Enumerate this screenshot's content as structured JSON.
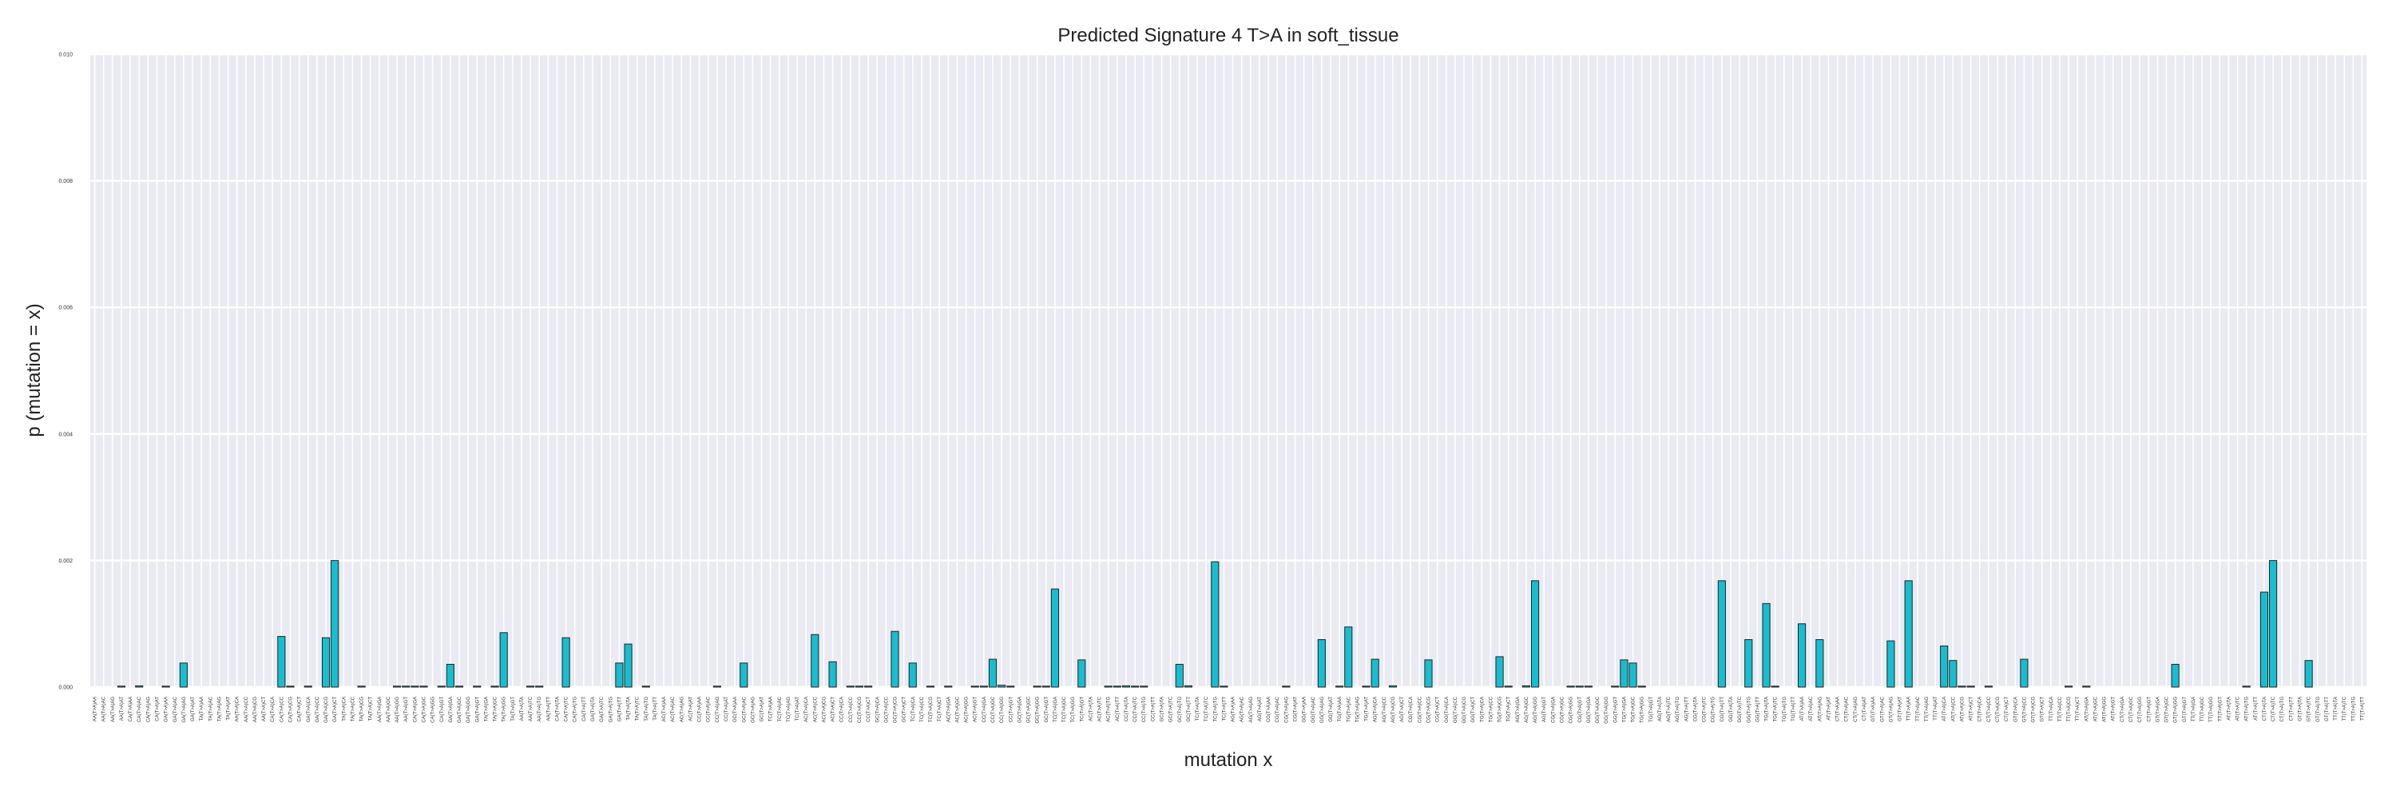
{
  "chart_data": {
    "type": "bar",
    "title": "Predicted Signature 4 T>A in soft_tissue",
    "xlabel": "mutation x",
    "ylabel": "p (mutation = x)",
    "ylim": [
      0,
      0.01
    ],
    "yticks": [
      "0.000",
      "0.002",
      "0.004",
      "0.006",
      "0.008",
      "0.010"
    ],
    "grid": true,
    "bar_color": "#17becf",
    "edge_color": "#222222",
    "background_color": "#eaeaf2",
    "categories": [
      "AA(T>A)AA",
      "AA(T>A)AC",
      "AA(T>A)AG",
      "AA(T>A)AT",
      "CA(T>A)AA",
      "CA(T>A)AC",
      "CA(T>A)AG",
      "CA(T>A)AT",
      "GA(T>A)AA",
      "GA(T>A)AC",
      "GA(T>A)AG",
      "GA(T>A)AT",
      "TA(T>A)AA",
      "TA(T>A)AC",
      "TA(T>A)AG",
      "TA(T>A)AT",
      "AA(T>A)CA",
      "AA(T>A)CC",
      "AA(T>A)CG",
      "AA(T>A)CT",
      "CA(T>A)CA",
      "CA(T>A)CC",
      "CA(T>A)CG",
      "CA(T>A)CT",
      "GA(T>A)CA",
      "GA(T>A)CC",
      "GA(T>A)CG",
      "GA(T>A)CT",
      "TA(T>A)CA",
      "TA(T>A)CC",
      "TA(T>A)CG",
      "TA(T>A)CT",
      "AA(T>A)GA",
      "AA(T>A)GC",
      "AA(T>A)GG",
      "AA(T>A)GT",
      "CA(T>A)GA",
      "CA(T>A)GC",
      "CA(T>A)GG",
      "CA(T>A)GT",
      "GA(T>A)GA",
      "GA(T>A)GC",
      "GA(T>A)GG",
      "GA(T>A)GT",
      "TA(T>A)GA",
      "TA(T>A)GC",
      "TA(T>A)GG",
      "TA(T>A)GT",
      "AA(T>A)TA",
      "AA(T>A)TC",
      "AA(T>A)TG",
      "AA(T>A)TT",
      "CA(T>A)TA",
      "CA(T>A)TC",
      "CA(T>A)TG",
      "CA(T>A)TT",
      "GA(T>A)TA",
      "GA(T>A)TC",
      "GA(T>A)TG",
      "GA(T>A)TT",
      "TA(T>A)TA",
      "TA(T>A)TC",
      "TA(T>A)TG",
      "TA(T>A)TT",
      "AC(T>A)AA",
      "AC(T>A)AC",
      "AC(T>A)AG",
      "AC(T>A)AT",
      "CC(T>A)AA",
      "CC(T>A)AC",
      "CC(T>A)AG",
      "CC(T>A)AT",
      "GC(T>A)AA",
      "GC(T>A)AC",
      "GC(T>A)AG",
      "GC(T>A)AT",
      "TC(T>A)AA",
      "TC(T>A)AC",
      "TC(T>A)AG",
      "TC(T>A)AT",
      "AC(T>A)CA",
      "AC(T>A)CC",
      "AC(T>A)CG",
      "AC(T>A)CT",
      "CC(T>A)CA",
      "CC(T>A)CC",
      "CC(T>A)CG",
      "CC(T>A)CT",
      "GC(T>A)CA",
      "GC(T>A)CC",
      "GC(T>A)CG",
      "GC(T>A)CT",
      "TC(T>A)CA",
      "TC(T>A)CC",
      "TC(T>A)CG",
      "TC(T>A)CT",
      "AC(T>A)GA",
      "AC(T>A)GC",
      "AC(T>A)GG",
      "AC(T>A)GT",
      "CC(T>A)GA",
      "CC(T>A)GC",
      "CC(T>A)GG",
      "CC(T>A)GT",
      "GC(T>A)GA",
      "GC(T>A)GC",
      "GC(T>A)GG",
      "GC(T>A)GT",
      "TC(T>A)GA",
      "TC(T>A)GC",
      "TC(T>A)GG",
      "TC(T>A)GT",
      "AC(T>A)TA",
      "AC(T>A)TC",
      "AC(T>A)TG",
      "AC(T>A)TT",
      "CC(T>A)TA",
      "CC(T>A)TC",
      "CC(T>A)TG",
      "CC(T>A)TT",
      "GC(T>A)TA",
      "GC(T>A)TC",
      "GC(T>A)TG",
      "GC(T>A)TT",
      "TC(T>A)TA",
      "TC(T>A)TC",
      "TC(T>A)TG",
      "TC(T>A)TT",
      "AG(T>A)AA",
      "AG(T>A)AC",
      "AG(T>A)AG",
      "AG(T>A)AT",
      "CG(T>A)AA",
      "CG(T>A)AC",
      "CG(T>A)AG",
      "CG(T>A)AT",
      "GG(T>A)AA",
      "GG(T>A)AC",
      "GG(T>A)AG",
      "GG(T>A)AT",
      "TG(T>A)AA",
      "TG(T>A)AC",
      "TG(T>A)AG",
      "TG(T>A)AT",
      "AG(T>A)CA",
      "AG(T>A)CC",
      "AG(T>A)CG",
      "AG(T>A)CT",
      "CG(T>A)CA",
      "CG(T>A)CC",
      "CG(T>A)CG",
      "CG(T>A)CT",
      "GG(T>A)CA",
      "GG(T>A)CC",
      "GG(T>A)CG",
      "GG(T>A)CT",
      "TG(T>A)CA",
      "TG(T>A)CC",
      "TG(T>A)CG",
      "TG(T>A)CT",
      "AG(T>A)GA",
      "AG(T>A)GC",
      "AG(T>A)GG",
      "AG(T>A)GT",
      "CG(T>A)GA",
      "CG(T>A)GC",
      "CG(T>A)GG",
      "CG(T>A)GT",
      "GG(T>A)GA",
      "GG(T>A)GC",
      "GG(T>A)GG",
      "GG(T>A)GT",
      "TG(T>A)GA",
      "TG(T>A)GC",
      "TG(T>A)GG",
      "TG(T>A)GT",
      "AG(T>A)TA",
      "AG(T>A)TC",
      "AG(T>A)TG",
      "AG(T>A)TT",
      "CG(T>A)TA",
      "CG(T>A)TC",
      "CG(T>A)TG",
      "CG(T>A)TT",
      "GG(T>A)TA",
      "GG(T>A)TC",
      "GG(T>A)TG",
      "GG(T>A)TT",
      "TG(T>A)TA",
      "TG(T>A)TC",
      "TG(T>A)TG",
      "TG(T>A)TT",
      "AT(T>A)AA",
      "AT(T>A)AC",
      "AT(T>A)AG",
      "AT(T>A)AT",
      "CT(T>A)AA",
      "CT(T>A)AC",
      "CT(T>A)AG",
      "CT(T>A)AT",
      "GT(T>A)AA",
      "GT(T>A)AC",
      "GT(T>A)AG",
      "GT(T>A)AT",
      "TT(T>A)AA",
      "TT(T>A)AC",
      "TT(T>A)AG",
      "TT(T>A)AT",
      "AT(T>A)CA",
      "AT(T>A)CC",
      "AT(T>A)CG",
      "AT(T>A)CT",
      "CT(T>A)CA",
      "CT(T>A)CC",
      "CT(T>A)CG",
      "CT(T>A)CT",
      "GT(T>A)CA",
      "GT(T>A)CC",
      "GT(T>A)CG",
      "GT(T>A)CT",
      "TT(T>A)CA",
      "TT(T>A)CC",
      "TT(T>A)CG",
      "TT(T>A)CT",
      "AT(T>A)GA",
      "AT(T>A)GC",
      "AT(T>A)GG",
      "AT(T>A)GT",
      "CT(T>A)GA",
      "CT(T>A)GC",
      "CT(T>A)GG",
      "CT(T>A)GT",
      "GT(T>A)GA",
      "GT(T>A)GC",
      "GT(T>A)GG",
      "GT(T>A)GT",
      "TT(T>A)GA",
      "TT(T>A)GC",
      "TT(T>A)GG",
      "TT(T>A)GT",
      "AT(T>A)TA",
      "AT(T>A)TC",
      "AT(T>A)TG",
      "AT(T>A)TT",
      "CT(T>A)TA",
      "CT(T>A)TC",
      "CT(T>A)TG",
      "CT(T>A)TT",
      "GT(T>A)TA",
      "GT(T>A)TC",
      "GT(T>A)TG",
      "GT(T>A)TT",
      "TT(T>A)TA",
      "TT(T>A)TC",
      "TT(T>A)TG",
      "TT(T>A)TT"
    ],
    "values": [
      0,
      0,
      0,
      1e-05,
      0,
      2e-05,
      0,
      0,
      1e-05,
      0,
      0.00038,
      0,
      0,
      0,
      0,
      0,
      0,
      0,
      0,
      0,
      0,
      0.0008,
      1e-05,
      0,
      1e-05,
      0,
      0.00078,
      0.002,
      0,
      0,
      1e-05,
      0,
      0,
      0,
      1e-05,
      1e-05,
      1e-05,
      1e-05,
      0,
      1e-05,
      0.00036,
      1e-05,
      0,
      1e-05,
      0,
      1e-05,
      0.00086,
      0,
      0,
      1e-05,
      1e-05,
      0,
      0,
      0.00078,
      0,
      0,
      0,
      0,
      0,
      0.00038,
      0.00068,
      0,
      1e-05,
      0,
      0,
      0,
      0,
      0,
      0,
      0,
      1e-05,
      0,
      0,
      0.00038,
      0,
      0,
      0,
      0,
      0,
      0,
      0,
      0.00083,
      0,
      0.0004,
      0,
      1e-05,
      1e-05,
      1e-05,
      0,
      0,
      0.00088,
      0,
      0.00038,
      0,
      1e-05,
      0,
      1e-05,
      0,
      0,
      1e-05,
      1e-05,
      0.00044,
      3e-05,
      1e-05,
      0,
      0,
      1e-05,
      1e-05,
      0.00155,
      0,
      0,
      0.00043,
      0,
      0,
      1e-05,
      1e-05,
      2e-05,
      1e-05,
      1e-05,
      0,
      0,
      0,
      0.00036,
      2e-05,
      0,
      0,
      0.00198,
      1e-05,
      0,
      0,
      0,
      0,
      0,
      0,
      1e-05,
      0,
      0,
      0,
      0.00075,
      0,
      1e-05,
      0.00095,
      0,
      1e-05,
      0.00044,
      0,
      2e-05,
      0,
      0,
      0,
      0.00043,
      0,
      0,
      0,
      0,
      0,
      0,
      0,
      0.00048,
      1e-05,
      0,
      2e-05,
      0.00168,
      0,
      0,
      0,
      1e-05,
      1e-05,
      1e-05,
      0,
      0,
      1e-05,
      0.00043,
      0.00038,
      1e-05,
      0,
      0,
      0,
      0,
      0,
      0,
      0,
      0,
      0.00168,
      0,
      0,
      0.00075,
      0,
      0.00132,
      1e-05,
      0,
      0,
      0.001,
      0,
      0.00075,
      0,
      0,
      0,
      0,
      0,
      0,
      0,
      0.00073,
      0,
      0.00168,
      0,
      0,
      0,
      0.00065,
      0.00042,
      1e-05,
      1e-05,
      0,
      1e-05,
      0,
      0,
      0,
      0.00044,
      0,
      0,
      0,
      0,
      1e-05,
      0,
      1e-05,
      0,
      0,
      0,
      0,
      0,
      0,
      0,
      0,
      0,
      0.00036,
      0,
      0,
      0,
      0,
      0,
      0,
      0,
      1e-05,
      0,
      0.0015,
      0.002,
      0,
      0,
      0,
      0.00042,
      0,
      0,
      0,
      0,
      0,
      0
    ]
  }
}
